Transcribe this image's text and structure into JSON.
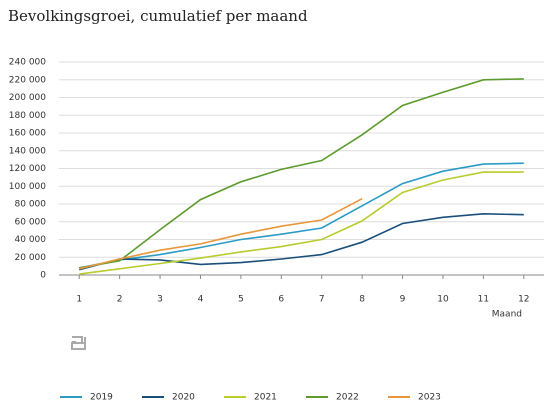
{
  "chart_data": {
    "type": "line",
    "title": "Bevolkingsgroei, cumulatief per maand",
    "x_label": "Maand",
    "x": [
      1,
      2,
      3,
      4,
      5,
      6,
      7,
      8,
      9,
      10,
      11,
      12
    ],
    "xlim": [
      0.5,
      12.5
    ],
    "xticks": [
      1,
      2,
      3,
      4,
      5,
      6,
      7,
      8,
      9,
      10,
      11,
      12
    ],
    "ylim": [
      0,
      240000
    ],
    "yticks": [
      0,
      {
        "value": 20000,
        "label": "20 000"
      },
      {
        "value": 40000,
        "label": "40 000"
      },
      {
        "value": 60000,
        "label": "60 000"
      },
      {
        "value": 80000,
        "label": "80 000"
      },
      {
        "value": 100000,
        "label": "100 000"
      },
      {
        "value": 120000,
        "label": "120 000"
      },
      {
        "value": 140000,
        "label": "140 000"
      },
      {
        "value": 160000,
        "label": "160 000"
      },
      {
        "value": 180000,
        "label": "180 000"
      },
      {
        "value": 200000,
        "label": "200 000"
      },
      {
        "value": 220000,
        "label": "220 000"
      },
      {
        "value": 240000,
        "label": "240 000"
      }
    ],
    "grid": true,
    "legend": "bottom",
    "series": [
      {
        "name": "2019",
        "color": "#2b9bc6",
        "values": [
          8000,
          17000,
          23000,
          31000,
          40000,
          46000,
          53000,
          78000,
          103000,
          117000,
          125000,
          126000
        ]
      },
      {
        "name": "2020",
        "color": "#1a4f7c",
        "values": [
          6000,
          18000,
          17000,
          12000,
          14000,
          18000,
          23000,
          37000,
          58000,
          65000,
          69000,
          68000
        ]
      },
      {
        "name": "2021",
        "color": "#b8cc2e",
        "values": [
          1000,
          7000,
          13000,
          19000,
          26000,
          32000,
          40000,
          61000,
          93000,
          107000,
          116000,
          116000
        ]
      },
      {
        "name": "2022",
        "color": "#5c9b2c",
        "values": [
          8000,
          16000,
          51000,
          85000,
          105000,
          119000,
          129000,
          158000,
          191000,
          206000,
          220000,
          221000
        ]
      },
      {
        "name": "2023",
        "color": "#e8963a",
        "values": [
          7000,
          18000,
          28000,
          35000,
          46000,
          55000,
          62000,
          86000,
          null,
          null,
          null,
          null
        ]
      }
    ]
  }
}
